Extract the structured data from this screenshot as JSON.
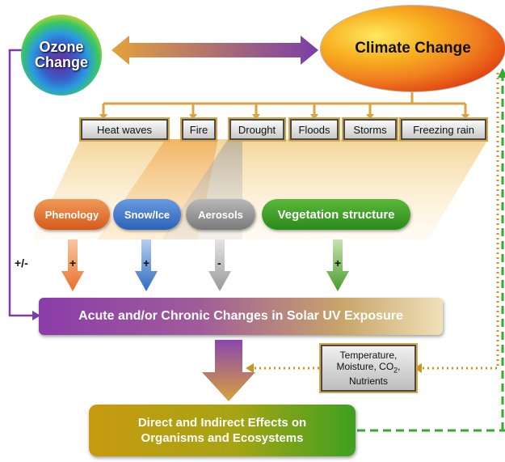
{
  "ozone": {
    "line1": "Ozone",
    "line2": "Change"
  },
  "climate": {
    "label": "Climate Change"
  },
  "events": [
    "Heat waves",
    "Fire",
    "Drought",
    "Floods",
    "Storms",
    "Freezing rain"
  ],
  "factors": [
    {
      "label": "Phenology",
      "sign": "+"
    },
    {
      "label": "Snow/Ice",
      "sign": "+"
    },
    {
      "label": "Aerosols",
      "sign": "-"
    },
    {
      "label": "Vegetation structure",
      "sign": "+"
    }
  ],
  "ozone_sign": "+/-",
  "uv_box": "Acute and/or Chronic Changes in Solar UV Exposure",
  "drivers": {
    "line1": "Temperature,",
    "line2a": "Moisture, CO",
    "line2sub": "2",
    "line2b": ",",
    "line3": "Nutrients"
  },
  "effects": {
    "line1": "Direct and Indirect Effects on",
    "line2": "Organisms and Ecosystems"
  },
  "colors": {
    "ozone_arrow": "#7a3ea8",
    "gold_arrow": "#d9a441",
    "phenology": "#e0702a",
    "snow_ice": "#3a78c8",
    "aerosols": "#9c9c9c",
    "vegetation": "#4a9a2a",
    "dashed_green": "#3aa832"
  }
}
